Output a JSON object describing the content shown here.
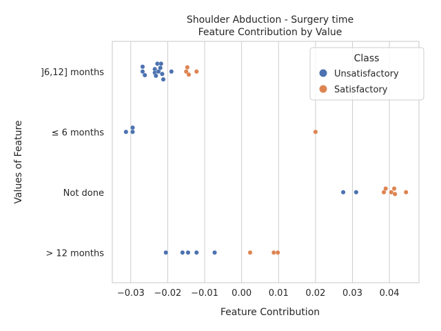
{
  "chart_data": {
    "type": "scatter",
    "title": "Shoulder Abduction - Surgery time",
    "subtitle": "Feature Contribution by Value",
    "xlabel": "Feature Contribution",
    "ylabel": "Values of Feature",
    "xlim": [
      -0.035,
      0.048
    ],
    "x_ticks": [
      -0.03,
      -0.02,
      -0.01,
      0.0,
      0.01,
      0.02,
      0.03,
      0.04
    ],
    "x_tick_labels": [
      "−0.03",
      "−0.02",
      "−0.01",
      "0.00",
      "0.01",
      "0.02",
      "0.03",
      "0.04"
    ],
    "categories": [
      "]6,12] months",
      "≤ 6 months",
      "Not done",
      "> 12 months"
    ],
    "grid": true,
    "legend": {
      "title": "Class",
      "position": "top-right"
    },
    "series": [
      {
        "name": "Unsatisfactory",
        "color": "#4c72b0",
        "points": [
          {
            "category": "]6,12] months",
            "x": -0.0268,
            "jitter": -0.08
          },
          {
            "category": "]6,12] months",
            "x": -0.0268,
            "jitter": 0.0
          },
          {
            "category": "]6,12] months",
            "x": -0.0262,
            "jitter": 0.06
          },
          {
            "category": "]6,12] months",
            "x": -0.0235,
            "jitter": -0.04
          },
          {
            "category": "]6,12] months",
            "x": -0.0235,
            "jitter": 0.02
          },
          {
            "category": "]6,12] months",
            "x": -0.0232,
            "jitter": 0.07
          },
          {
            "category": "]6,12] months",
            "x": -0.0228,
            "jitter": -0.13
          },
          {
            "category": "]6,12] months",
            "x": -0.0225,
            "jitter": 0.0
          },
          {
            "category": "]6,12] months",
            "x": -0.022,
            "jitter": -0.06
          },
          {
            "category": "]6,12] months",
            "x": -0.0218,
            "jitter": -0.13
          },
          {
            "category": "]6,12] months",
            "x": -0.0215,
            "jitter": 0.04
          },
          {
            "category": "]6,12] months",
            "x": -0.0212,
            "jitter": 0.13
          },
          {
            "category": "]6,12] months",
            "x": -0.019,
            "jitter": 0.0
          },
          {
            "category": "≤ 6 months",
            "x": -0.0313,
            "jitter": 0.0
          },
          {
            "category": "≤ 6 months",
            "x": -0.0295,
            "jitter": -0.07
          },
          {
            "category": "≤ 6 months",
            "x": -0.0295,
            "jitter": 0.0
          },
          {
            "category": "Not done",
            "x": 0.0275,
            "jitter": 0.0
          },
          {
            "category": "Not done",
            "x": 0.031,
            "jitter": 0.0
          },
          {
            "category": "> 12 months",
            "x": -0.0205,
            "jitter": 0.0
          },
          {
            "category": "> 12 months",
            "x": -0.016,
            "jitter": 0.0
          },
          {
            "category": "> 12 months",
            "x": -0.0145,
            "jitter": 0.0
          },
          {
            "category": "> 12 months",
            "x": -0.0122,
            "jitter": 0.0
          },
          {
            "category": "> 12 months",
            "x": -0.0073,
            "jitter": 0.0
          }
        ]
      },
      {
        "name": "Satisfactory",
        "color": "#dd8452",
        "points": [
          {
            "category": "]6,12] months",
            "x": -0.015,
            "jitter": 0.0
          },
          {
            "category": "]6,12] months",
            "x": -0.0147,
            "jitter": -0.07
          },
          {
            "category": "]6,12] months",
            "x": -0.0143,
            "jitter": 0.05
          },
          {
            "category": "]6,12] months",
            "x": -0.0122,
            "jitter": 0.0
          },
          {
            "category": "≤ 6 months",
            "x": 0.02,
            "jitter": 0.0
          },
          {
            "category": "Not done",
            "x": 0.0385,
            "jitter": 0.0
          },
          {
            "category": "Not done",
            "x": 0.039,
            "jitter": -0.06
          },
          {
            "category": "Not done",
            "x": 0.0405,
            "jitter": 0.0
          },
          {
            "category": "Not done",
            "x": 0.0413,
            "jitter": -0.06
          },
          {
            "category": "Not done",
            "x": 0.0415,
            "jitter": 0.03
          },
          {
            "category": "Not done",
            "x": 0.0445,
            "jitter": 0.0
          },
          {
            "category": "> 12 months",
            "x": 0.0023,
            "jitter": 0.0
          },
          {
            "category": "> 12 months",
            "x": 0.0087,
            "jitter": 0.0
          },
          {
            "category": "> 12 months",
            "x": 0.0098,
            "jitter": 0.0
          }
        ]
      }
    ]
  }
}
